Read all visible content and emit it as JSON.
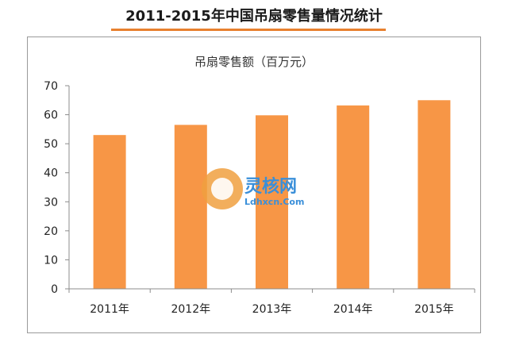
{
  "page_title": "2011-2015年中国吊扇零售量情况统计",
  "colors": {
    "bar": "#f79646",
    "accent_rule": "#e8802f"
  },
  "watermark": {
    "name": "灵核网",
    "url": "Ldhxcn.Com"
  },
  "chart_data": {
    "type": "bar",
    "title": "吊扇零售额（百万元）",
    "xlabel": "",
    "ylabel": "",
    "categories": [
      "2011年",
      "2012年",
      "2013年",
      "2014年",
      "2015年"
    ],
    "values": [
      53,
      56.5,
      59.8,
      63.2,
      65
    ],
    "ylim": [
      0,
      70
    ],
    "yticks": [
      0,
      10,
      20,
      30,
      40,
      50,
      60,
      70
    ],
    "grid": false,
    "legend": "none"
  }
}
